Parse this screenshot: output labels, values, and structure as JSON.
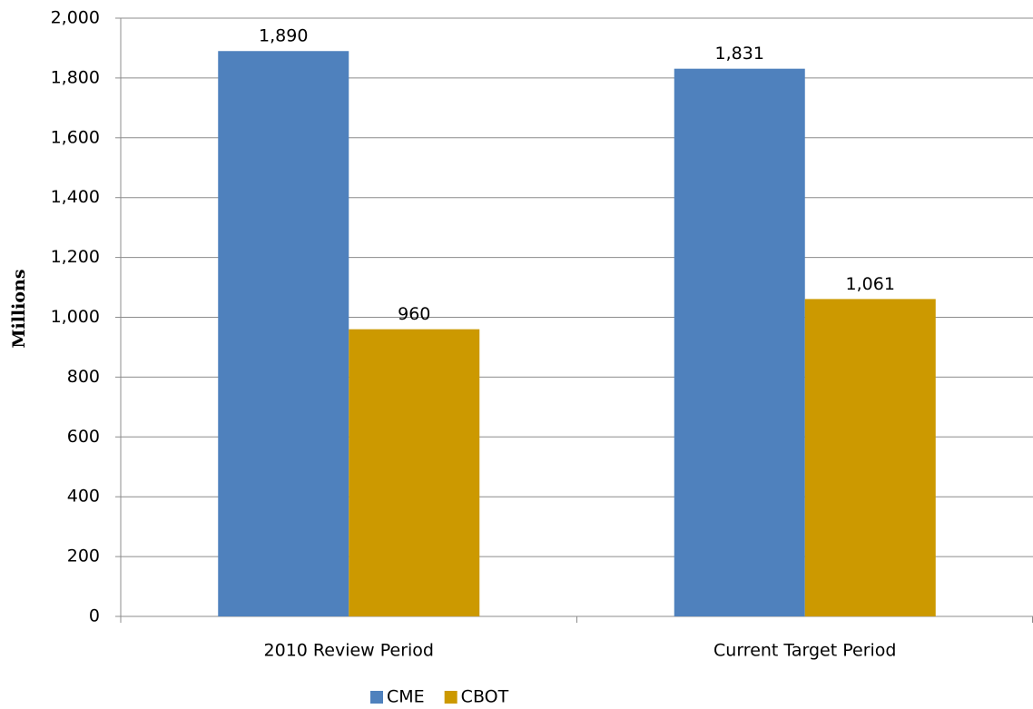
{
  "chart_data": {
    "type": "bar",
    "categories": [
      "2010 Review Period",
      "Current Target Period"
    ],
    "series": [
      {
        "name": "CME",
        "color": "#4f81bd",
        "values": [
          1890,
          1831
        ],
        "value_labels": [
          "1,890",
          "1,831"
        ]
      },
      {
        "name": "CBOT",
        "color": "#cc9900",
        "values": [
          960,
          1061
        ],
        "value_labels": [
          "960",
          "1,061"
        ]
      }
    ],
    "y_label": "Millions",
    "ylim": [
      0,
      2000
    ],
    "yticks": [
      0,
      200,
      400,
      600,
      800,
      {
        "value": 1000,
        "label": "1,000"
      },
      {
        "value": 1200,
        "label": "1,200"
      },
      {
        "value": 1400,
        "label": "1,400"
      },
      {
        "value": 1600,
        "label": "1,600"
      },
      {
        "value": 1800,
        "label": "1,800"
      },
      {
        "value": 2000,
        "label": "2,000"
      }
    ],
    "grid": true,
    "legend": "bottom"
  }
}
